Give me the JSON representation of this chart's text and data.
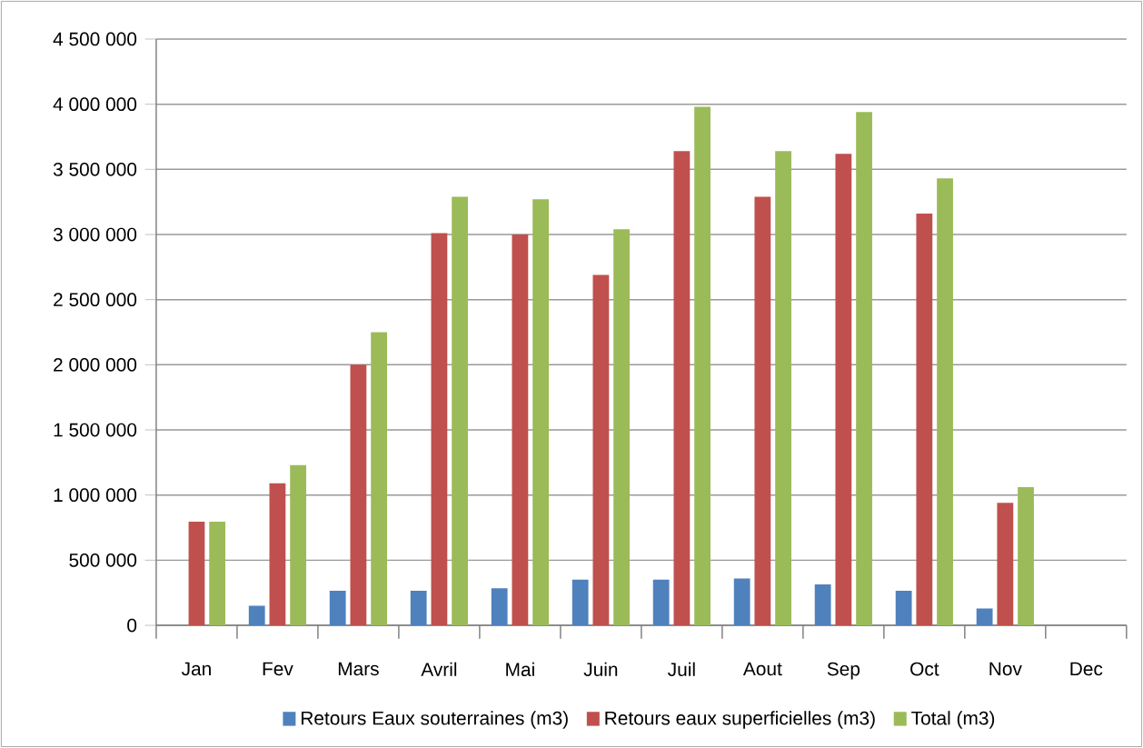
{
  "chart_data": {
    "type": "bar",
    "categories": [
      "Jan",
      "Fev",
      "Mars",
      "Avril",
      "Mai",
      "Juin",
      "Juil",
      "Aout",
      "Sep",
      "Oct",
      "Nov",
      "Dec"
    ],
    "series": [
      {
        "name": "Retours Eaux  souterraines (m3)",
        "color": "#4f81bd",
        "values": [
          0,
          150000,
          265000,
          265000,
          285000,
          350000,
          350000,
          360000,
          315000,
          265000,
          130000,
          null
        ]
      },
      {
        "name": "Retours eaux superficielles (m3)",
        "color": "#c0504d",
        "values": [
          795000,
          1090000,
          2000000,
          3010000,
          3000000,
          2690000,
          3640000,
          3290000,
          3620000,
          3160000,
          940000,
          null
        ]
      },
      {
        "name": "Total (m3)",
        "color": "#9bbb59",
        "values": [
          795000,
          1230000,
          2250000,
          3290000,
          3270000,
          3040000,
          3980000,
          3640000,
          3940000,
          3430000,
          1060000,
          null
        ]
      }
    ],
    "ylim": [
      0,
      4500000
    ],
    "yticks": [
      0,
      {
        "value": 500000,
        "label": "500 000"
      },
      {
        "value": 1000000,
        "label": "1 000 000"
      },
      {
        "value": 1500000,
        "label": "1 500 000"
      },
      {
        "value": 2000000,
        "label": "2 000 000"
      },
      {
        "value": 2500000,
        "label": "2 500 000"
      },
      {
        "value": 3000000,
        "label": "3 000 000"
      },
      {
        "value": 3500000,
        "label": "3 500 000"
      },
      {
        "value": 4000000,
        "label": "4 000 000"
      },
      {
        "value": 4500000,
        "label": "4 500 000"
      }
    ],
    "grid": "y",
    "legend": "bottom"
  }
}
